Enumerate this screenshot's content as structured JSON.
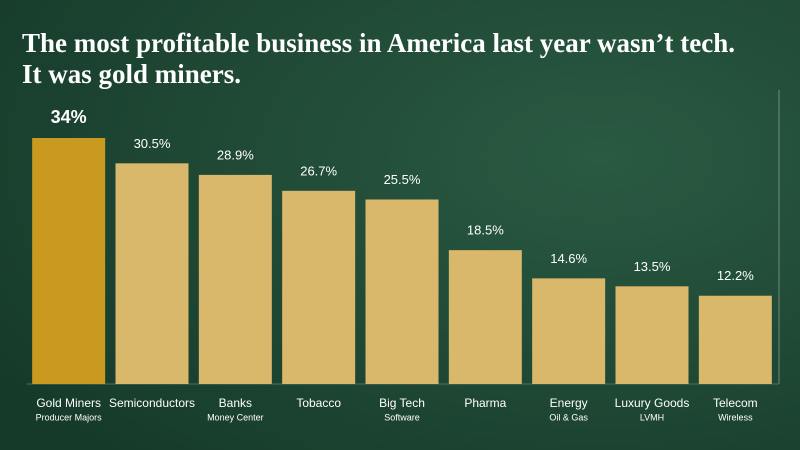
{
  "chart_data": {
    "type": "bar",
    "title": [
      "The most profitable business in America last year wasn’t tech.",
      "It was gold miners."
    ],
    "categories": [
      "Gold Miners",
      "Semiconductors",
      "Banks",
      "Tobacco",
      "Big Tech",
      "Pharma",
      "Energy",
      "Luxury Goods",
      "Telecom"
    ],
    "sublabels": [
      "Producer Majors",
      null,
      "Money Center",
      null,
      "Software",
      null,
      "Oil & Gas",
      "LVMH",
      "Wireless"
    ],
    "values": [
      34,
      30.5,
      28.9,
      26.7,
      25.5,
      18.5,
      14.6,
      13.5,
      12.2
    ],
    "value_labels": [
      "34%",
      "30.5%",
      "28.9%",
      "26.7%",
      "25.5%",
      "18.5%",
      "14.6%",
      "13.5%",
      "12.2%"
    ],
    "colors": [
      "#c99a1f",
      "#d9b86c",
      "#d9b86c",
      "#d9b86c",
      "#d9b86c",
      "#d9b86c",
      "#d9b86c",
      "#d9b86c",
      "#d9b86c"
    ]
  }
}
